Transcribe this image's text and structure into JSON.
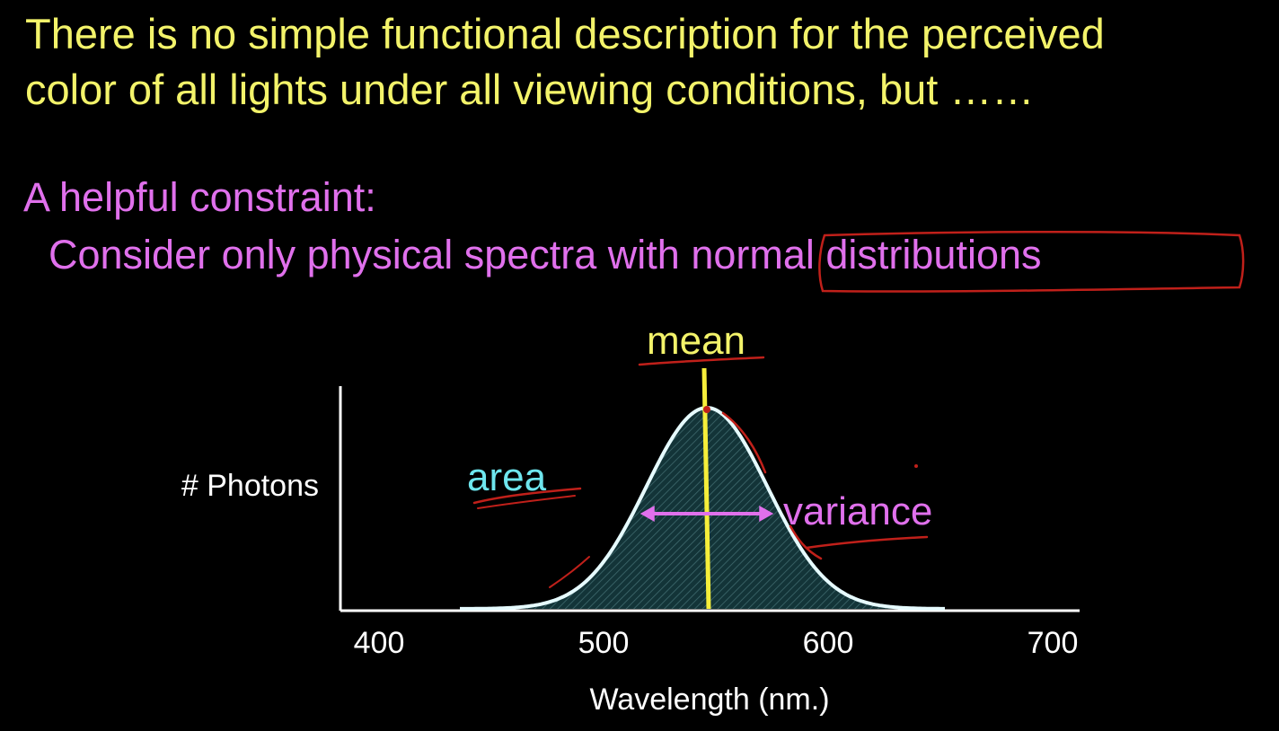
{
  "slide": {
    "headline": [
      "There is no simple functional description for the perceived",
      "color of all lights under all viewing conditions, but ……"
    ],
    "constraint_title": "A helpful constraint:",
    "constraint_prefix": "Consider only physical spectra with ",
    "constraint_highlight": "normal distributions"
  },
  "colors": {
    "headline": "#f3f36a",
    "constraint": "#e070ec",
    "curve": "#e6fbff",
    "area_label": "#6ee6ee",
    "mean_line": "#f6ee3a",
    "variance_arrow": "#e070ec",
    "annotation_ink": "#c0201a"
  },
  "chart_data": {
    "type": "area",
    "title": "",
    "xlabel": "Wavelength (nm.)",
    "ylabel": "# Photons",
    "xlim": [
      400,
      700
    ],
    "xticks": [
      400,
      500,
      600,
      700
    ],
    "distribution": {
      "mean": 546,
      "sd": 27,
      "x_start": 436,
      "x_end": 652
    },
    "annotations": {
      "mean": "mean",
      "area": "area",
      "variance": "variance"
    }
  }
}
